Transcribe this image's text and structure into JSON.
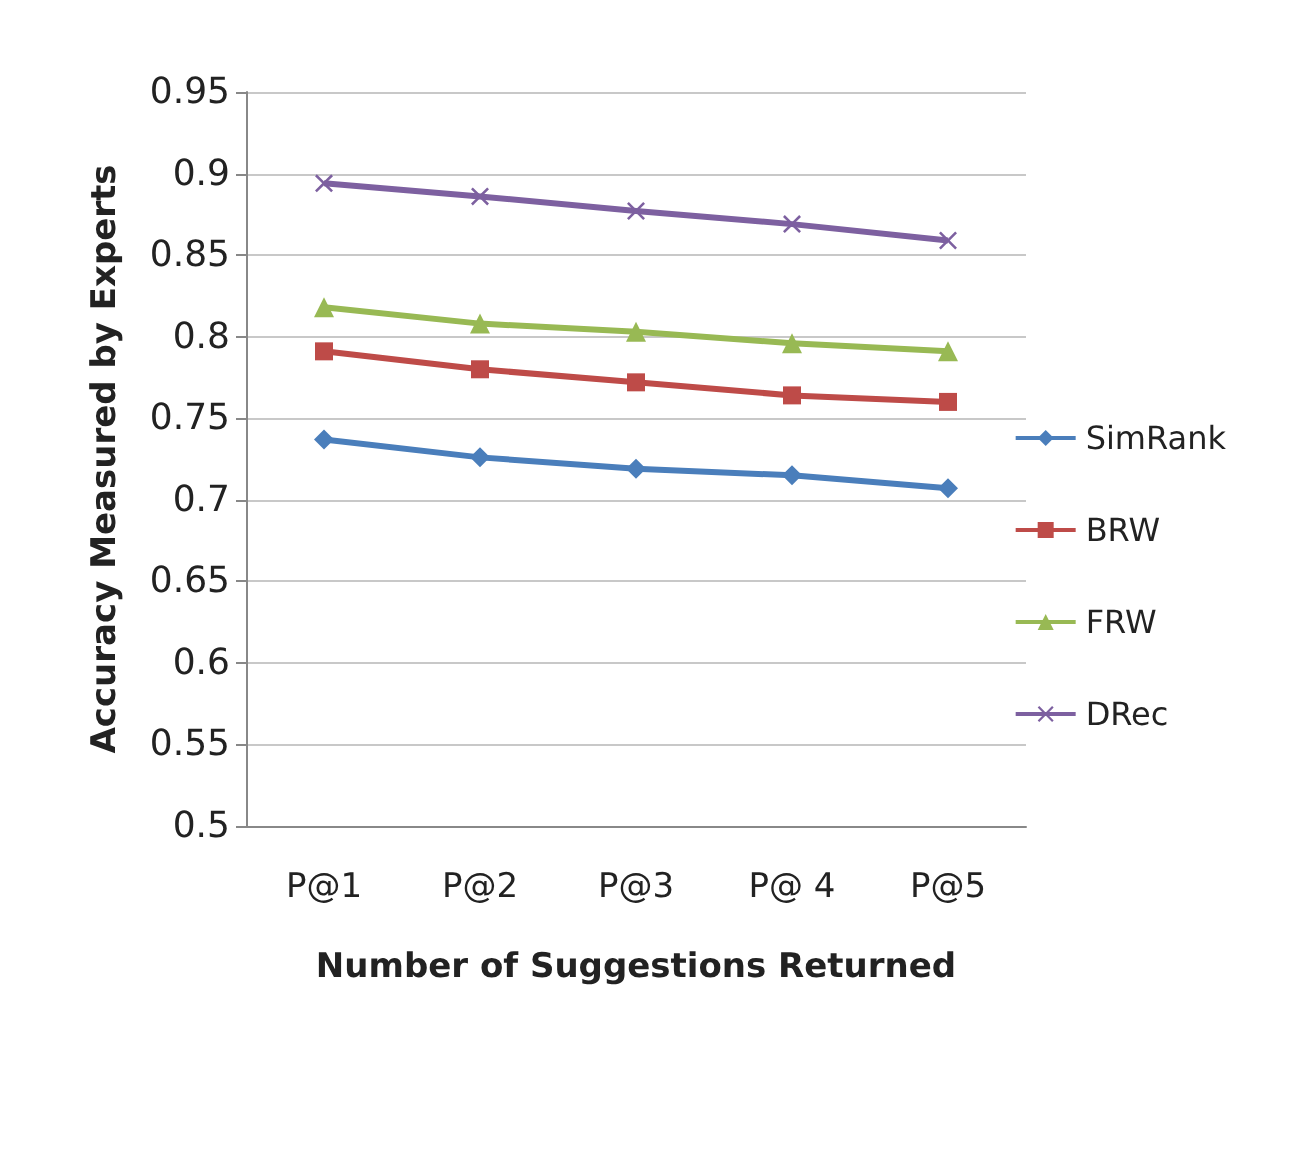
{
  "chart_data": {
    "type": "line",
    "xlabel": "Number of Suggestions Returned",
    "ylabel": "Accuracy Measured by Experts",
    "categories": [
      "P@1",
      "P@2",
      "P@3",
      "P@ 4",
      "P@5"
    ],
    "ylim": [
      0.5,
      0.95
    ],
    "yticks": [
      0.5,
      0.55,
      0.6,
      0.65,
      0.7,
      0.75,
      0.8,
      0.85,
      0.9,
      0.95
    ],
    "grid": "y",
    "legend": "right",
    "line_style": "solid",
    "series": [
      {
        "name": "SimRank",
        "color": "#4a7ebb",
        "marker": "diamond",
        "values": [
          0.737,
          0.726,
          0.719,
          0.715,
          0.707
        ]
      },
      {
        "name": "BRW",
        "color": "#be4b48",
        "marker": "square",
        "values": [
          0.791,
          0.78,
          0.772,
          0.764,
          0.76
        ]
      },
      {
        "name": "FRW",
        "color": "#98b954",
        "marker": "triangle",
        "values": [
          0.818,
          0.808,
          0.803,
          0.796,
          0.791
        ]
      },
      {
        "name": "DRec",
        "color": "#7d60a0",
        "marker": "cross",
        "values": [
          0.894,
          0.886,
          0.877,
          0.869,
          0.859
        ]
      }
    ]
  }
}
